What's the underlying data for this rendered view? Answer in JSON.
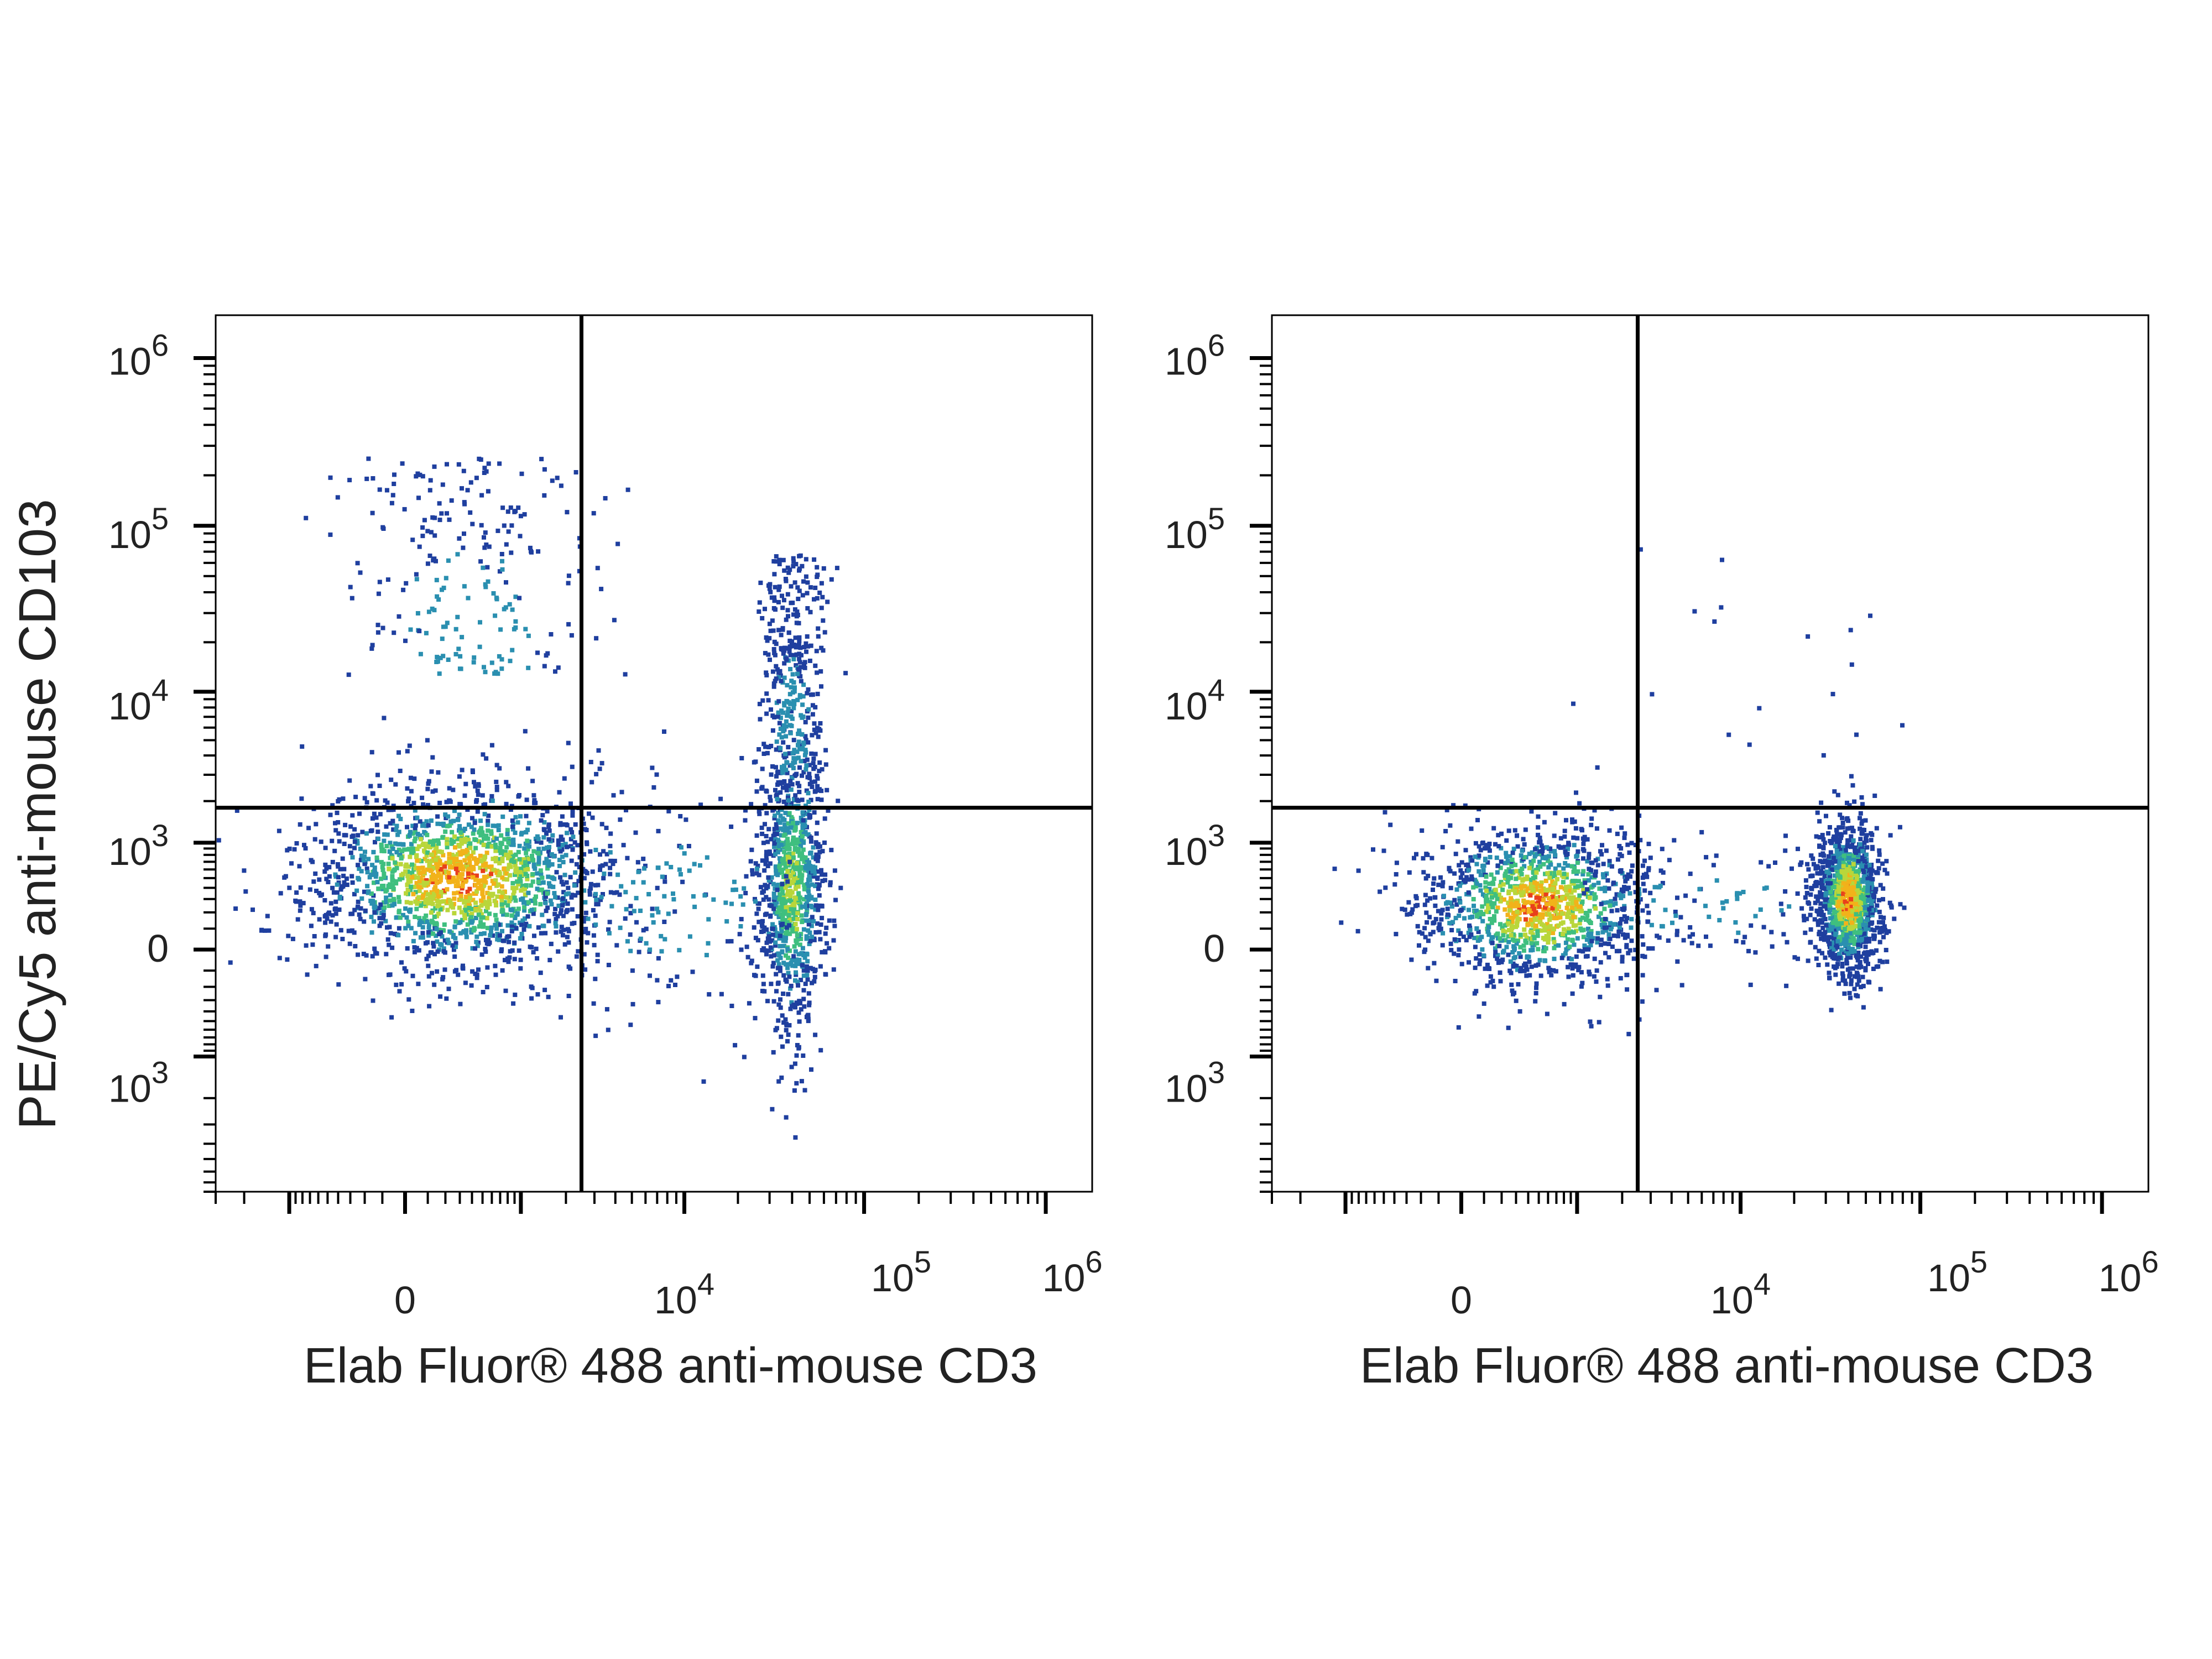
{
  "chart_data": [
    {
      "type": "scatter",
      "subtype": "flow-cytometry-density-dot-plot",
      "xlabel": "Elab Fluor® 488 anti-mouse CD3",
      "ylabel": "PE/Cy5 anti-mouse CD103",
      "x_scale": "biexponential",
      "y_scale": "biexponential",
      "x_ticks": [
        "0",
        "10^4",
        "10^5",
        "10^6"
      ],
      "y_ticks": [
        "10^6",
        "10^5",
        "10^4",
        "10^3",
        "0",
        "-10^3"
      ],
      "quadrant_gate": {
        "x": 2500,
        "y": 1800
      },
      "colormap": [
        "#1f3f9f",
        "#2a8fb0",
        "#3fbf7f",
        "#b9d63a",
        "#f2b21a",
        "#e8401c"
      ],
      "populations": [
        {
          "x": 300,
          "y": 500,
          "x_spread": 1000,
          "y_spread": 700,
          "count": 1800,
          "density": "high"
        },
        {
          "x": 400,
          "y": 20000,
          "x_spread": 900,
          "y_spread": "wide",
          "count": 230,
          "density": "low"
        },
        {
          "x": 40000,
          "y": 400,
          "x_spread": "narrow",
          "y_spread": 1200,
          "count": 900,
          "density": "medium"
        },
        {
          "x": 40000,
          "y": 5000,
          "x_spread": "narrow",
          "y_spread": "wide",
          "count": 330,
          "density": "low"
        },
        {
          "x": 9000,
          "y": 300,
          "x_spread": "wide",
          "y_spread": 900,
          "count": 170,
          "density": "low"
        }
      ]
    },
    {
      "type": "scatter",
      "subtype": "flow-cytometry-density-dot-plot",
      "xlabel": "Elab Fluor® 488 anti-mouse CD3",
      "ylabel": "",
      "x_scale": "biexponential",
      "y_scale": "biexponential",
      "x_ticks": [
        "0",
        "10^4",
        "10^5",
        "10^6"
      ],
      "y_ticks": [
        "10^6",
        "10^5",
        "10^4",
        "10^3",
        "0",
        "-10^3"
      ],
      "quadrant_gate": {
        "x": 2500,
        "y": 1800
      },
      "colormap": [
        "#1f3f9f",
        "#2a8fb0",
        "#3fbf7f",
        "#b9d63a",
        "#f2b21a",
        "#e8401c"
      ],
      "populations": [
        {
          "x": 500,
          "y": 250,
          "x_spread": 900,
          "y_spread": 400,
          "count": 1300,
          "density": "high"
        },
        {
          "x": 40000,
          "y": 300,
          "x_spread": "narrow",
          "y_spread": 400,
          "count": 1200,
          "density": "high"
        },
        {
          "x": 6000,
          "y": 250,
          "x_spread": "wide",
          "y_spread": 300,
          "count": 90,
          "density": "low"
        },
        {
          "x": 8000,
          "y": 20000,
          "x_spread": "wide",
          "y_spread": "wide",
          "count": 18,
          "density": "sparse"
        }
      ]
    }
  ]
}
